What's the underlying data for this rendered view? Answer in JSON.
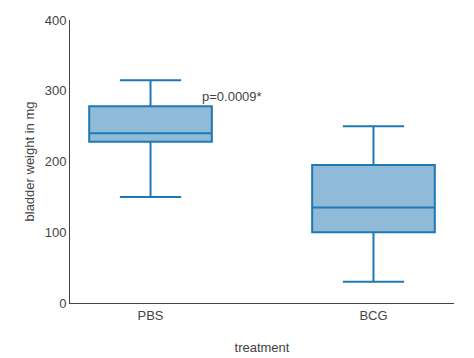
{
  "chart_data": {
    "type": "box",
    "categories": [
      "PBS",
      "BCG"
    ],
    "whislo": [
      150,
      30
    ],
    "q1": [
      228,
      100
    ],
    "med": [
      240,
      135
    ],
    "q3": [
      278,
      195
    ],
    "whishi": [
      315,
      250
    ],
    "xlabel": "treatment",
    "ylabel": "bladder weight in mg",
    "ylim": [
      0,
      400
    ],
    "yticks": [
      0,
      100,
      200,
      300,
      400
    ],
    "annotation": {
      "text": "p=0.0009*",
      "category": "PBS",
      "y": 278
    },
    "grid": false
  }
}
